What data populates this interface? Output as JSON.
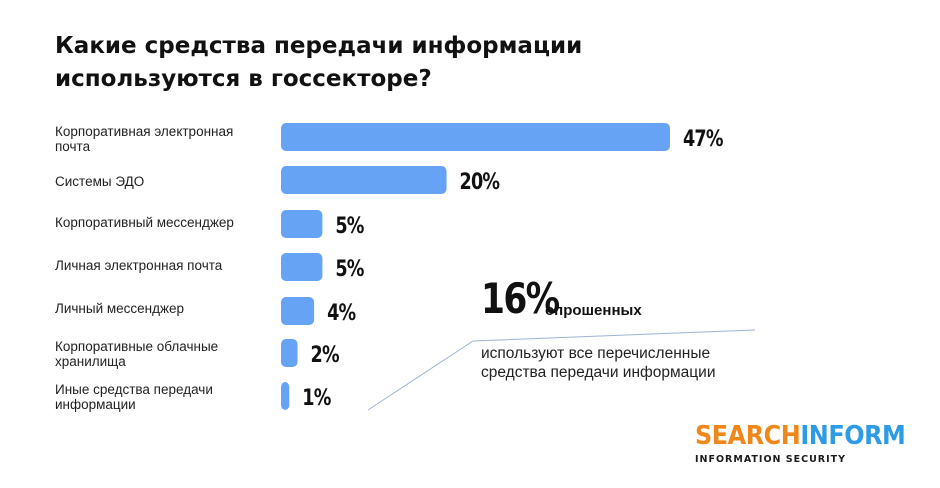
{
  "chart_data": {
    "type": "bar",
    "orientation": "horizontal",
    "title": "Какие средства передачи информации используются в госсекторе?",
    "categories": [
      "Корпоративная электронная почта",
      "Системы ЭДО",
      "Корпоративный мессенджер",
      "Личная электронная почта",
      "Личный мессенджер",
      "Корпоративные облачные хранилища",
      "Иные средства передачи информации"
    ],
    "values": [
      47,
      20,
      5,
      5,
      4,
      2,
      1
    ],
    "value_labels": [
      "47%",
      "20%",
      "5%",
      "5%",
      "4%",
      "2%",
      "1%"
    ],
    "unit": "%",
    "xlim": [
      0,
      47
    ],
    "grid": false,
    "bar_color": "#66a3f5",
    "annotation": {
      "value": "16%",
      "label": "опрошенных",
      "text": "используют все перечисленные средства передачи информации"
    }
  },
  "brand": {
    "name_part1": "SEARCH",
    "name_part2": "INF",
    "name_part3": "RM",
    "tagline": "INFORMATION SECURITY",
    "color_orange": "#f0871a",
    "color_blue": "#2e9be6"
  }
}
